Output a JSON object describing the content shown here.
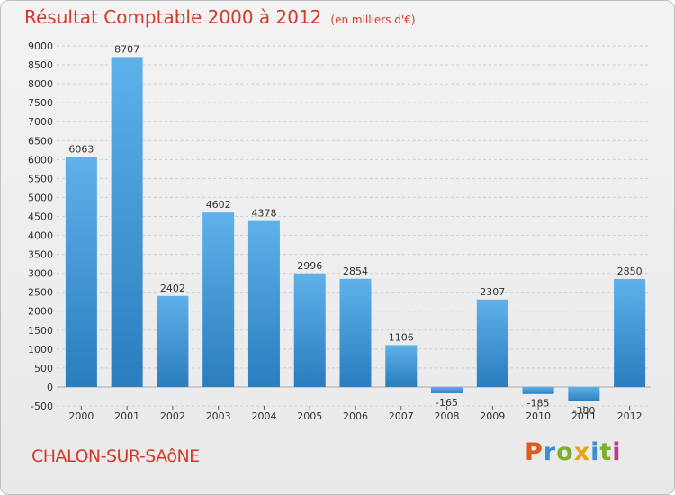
{
  "header": {
    "title": "Résultat Comptable 2000 à 2012",
    "subtitle": "(en milliers d'€)"
  },
  "footer": {
    "city": "CHALON-SUR-SAôNE",
    "logo": "Proxiti",
    "logo_colors": [
      "#e05a1e",
      "#3a8fd6",
      "#7ab22b",
      "#e8a317",
      "#3a8fd6",
      "#7ab22b",
      "#c43a8a"
    ]
  },
  "colors": {
    "bar_top": "#5fb1ea",
    "bar_bottom": "#2a7dbe",
    "title": "#d23a2b",
    "grid": "#d0d0d0"
  },
  "chart_data": {
    "type": "bar",
    "title": "Résultat Comptable 2000 à 2012",
    "subtitle": "(en milliers d'€)",
    "categories": [
      "2000",
      "2001",
      "2002",
      "2003",
      "2004",
      "2005",
      "2006",
      "2007",
      "2008",
      "2009",
      "2010",
      "2011",
      "2012"
    ],
    "values": [
      6063,
      8707,
      2402,
      4602,
      4378,
      2996,
      2854,
      1106,
      -165,
      2307,
      -185,
      -380,
      2850
    ],
    "value_labels": [
      "6063",
      "8707",
      "2402",
      "4602",
      "4378",
      "2996",
      "2854",
      "1106",
      "-165",
      "2307",
      "-185",
      "-380",
      "2850"
    ],
    "yticks": [
      -500,
      0,
      500,
      1000,
      1500,
      2000,
      2500,
      3000,
      3500,
      4000,
      4500,
      5000,
      5500,
      6000,
      6500,
      7000,
      7500,
      8000,
      8500,
      9000
    ],
    "ylim": [
      -500,
      9000
    ],
    "grid": true,
    "legend": "none"
  }
}
